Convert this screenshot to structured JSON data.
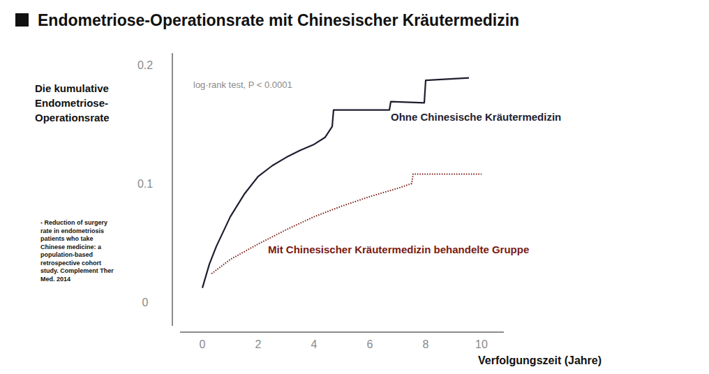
{
  "chart_data": {
    "type": "line",
    "title": "Endometriose-Operationsrate mit Chinesischer Kräutermedizin",
    "xlabel": "Verfolgungszeit (Jahre)",
    "ylabel": "Die kumulative\nEndometriose-\nOperationsrate",
    "annotations": [
      "log·rank test, P < 0.0001",
      "- Reduction of surgery\nrate in endometriosis\npatients who take\nChinese medicine: a\npopulation-based\nretrospective cohort\nstudy. Complement Ther\nMed. 2014"
    ],
    "xlim": [
      -0.8,
      10.8
    ],
    "ylim": [
      -0.02,
      0.21
    ],
    "xticks": [
      0,
      2,
      4,
      6,
      8,
      10
    ],
    "yticks": [
      0,
      0.1,
      0.2
    ],
    "grid": false,
    "series": [
      {
        "name": "Ohne Chinesische Kräutermedizin",
        "color": "#1e1e30",
        "line_style": "solid",
        "x": [
          0,
          0.25,
          0.5,
          1,
          1.5,
          2,
          2.5,
          3,
          3.5,
          4,
          4.4,
          4.65,
          4.7,
          6.7,
          6.75,
          7.95,
          8.0,
          9.55
        ],
        "values": [
          0.012,
          0.032,
          0.047,
          0.072,
          0.091,
          0.106,
          0.115,
          0.122,
          0.128,
          0.133,
          0.139,
          0.148,
          0.162,
          0.162,
          0.169,
          0.168,
          0.187,
          0.189
        ]
      },
      {
        "name": "Mit Chinesischer Kräutermedizin behandelte Gruppe",
        "color": "#7a1a12",
        "line_style": "dotted",
        "x": [
          0.33,
          1,
          2,
          3,
          4,
          5,
          6,
          7,
          7.5,
          7.55,
          10
        ],
        "values": [
          0.024,
          0.036,
          0.049,
          0.061,
          0.072,
          0.081,
          0.089,
          0.096,
          0.1,
          0.108,
          0.108
        ]
      }
    ]
  }
}
